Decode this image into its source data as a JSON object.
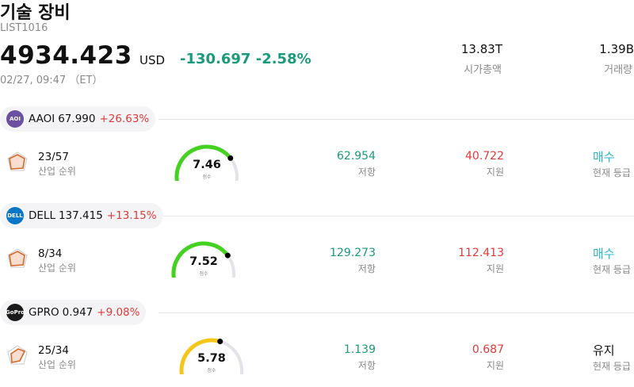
{
  "header": {
    "title": "기술 장비",
    "code": "LIST1016",
    "price": "4934.423",
    "currency": "USD",
    "change": "-130.697 -2.58%",
    "time": "02/27, 09:47 （ET）",
    "market_cap_value": "13.83T",
    "market_cap_label": "시가총액",
    "volume_value": "1.39B",
    "volume_label": "거래량"
  },
  "labels": {
    "rank": "산업 순위",
    "resistance": "저항",
    "support": "지원",
    "grade": "현재 등급",
    "score": "점수"
  },
  "colors": {
    "up": "#1a9b7a",
    "down": "#e23a3a",
    "buy": "#2ab8c8",
    "gauge_green": "#44d11f",
    "gauge_yellow": "#f5c518",
    "gauge_track": "#e3e3ea"
  },
  "rows": [
    {
      "ticker": "AAOI",
      "price": "67.990",
      "pct": "+26.63%",
      "logo_text": "AOI",
      "logo_color": "#6b4fa0",
      "rank": "23/57",
      "score": "7.46",
      "score_fraction": 0.746,
      "gauge_color": "#44d11f",
      "resistance": "62.954",
      "support": "40.722",
      "grade": "매수",
      "grade_color": "#2ab8c8"
    },
    {
      "ticker": "DELL",
      "price": "137.415",
      "pct": "+13.15%",
      "logo_text": "DELL",
      "logo_color": "#0a76c8",
      "rank": "8/34",
      "score": "7.52",
      "score_fraction": 0.752,
      "gauge_color": "#44d11f",
      "resistance": "129.273",
      "support": "112.413",
      "grade": "매수",
      "grade_color": "#2ab8c8"
    },
    {
      "ticker": "GPRO",
      "price": "0.947",
      "pct": "+9.08%",
      "logo_text": "GoPro",
      "logo_color": "#1a1a1a",
      "rank": "25/34",
      "score": "5.78",
      "score_fraction": 0.578,
      "gauge_color": "#f5c518",
      "resistance": "1.139",
      "support": "0.687",
      "grade": "유지",
      "grade_color": "#111111"
    }
  ]
}
